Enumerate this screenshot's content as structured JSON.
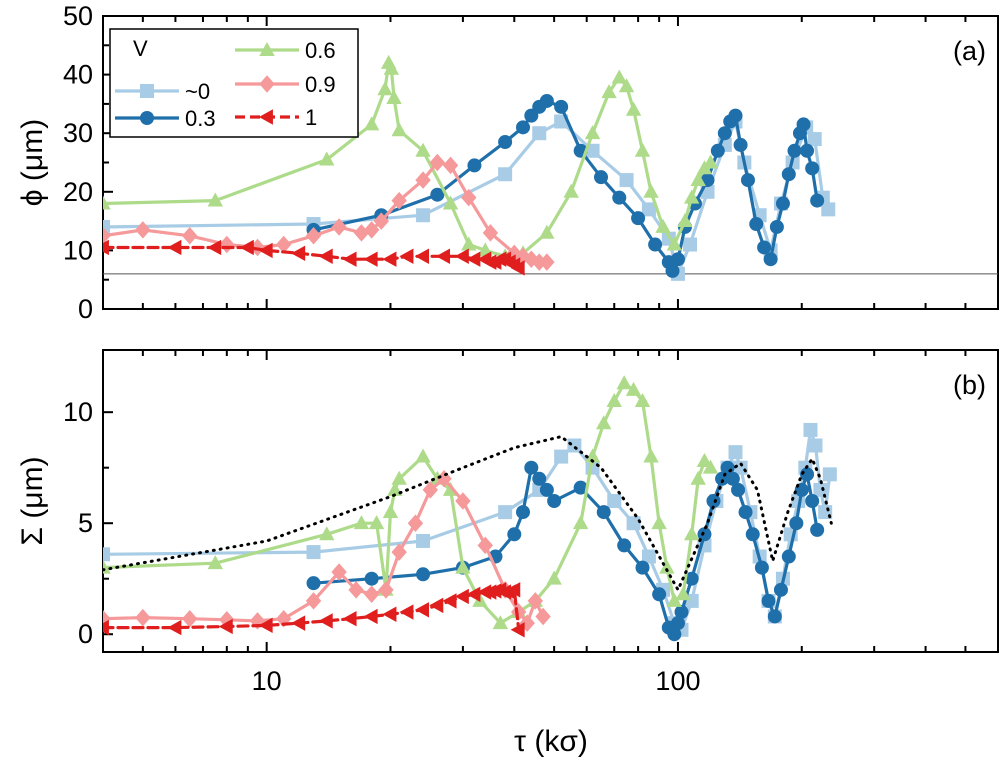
{
  "figure": {
    "xlabel": "τ (kσ)",
    "x_scale": "log",
    "x_ticks": [
      "10",
      "100"
    ],
    "legend_title": "V"
  },
  "chart_data": [
    {
      "type": "line",
      "panel": "(a)",
      "ylabel": "ϕ (μm)",
      "xlim": [
        4,
        600
      ],
      "ylim": [
        0,
        50
      ],
      "y_ticks": [
        "0",
        "10",
        "20",
        "30",
        "40",
        "50"
      ],
      "reference_line_y": 6,
      "legend_placement": "top-left",
      "series": [
        {
          "name": "~0",
          "color": "#a8cce6",
          "marker": "square",
          "dash": "solid",
          "x": [
            4,
            13,
            24,
            38,
            46,
            52,
            62,
            75,
            85,
            95,
            100,
            107,
            118,
            130,
            138,
            145,
            158,
            168,
            178,
            190,
            205,
            215,
            225,
            232
          ],
          "y": [
            14,
            14.5,
            16,
            23,
            30,
            32,
            27,
            22,
            17,
            12,
            6,
            11,
            20,
            28,
            32,
            25,
            16,
            10,
            18,
            25,
            31,
            29,
            19,
            17
          ]
        },
        {
          "name": "0.3",
          "color": "#1f6fab",
          "marker": "circle",
          "dash": "solid",
          "x": [
            13,
            19,
            26,
            32,
            38,
            42,
            44,
            46,
            48,
            52,
            58,
            65,
            72,
            80,
            88,
            95,
            97,
            100,
            104,
            110,
            118,
            125,
            130,
            134,
            138,
            142,
            148,
            155,
            162,
            168,
            174,
            180,
            186,
            192,
            198,
            202,
            206,
            212,
            218
          ],
          "y": [
            13.5,
            16,
            19.5,
            24.5,
            28.5,
            31,
            33,
            34.5,
            35.5,
            34.5,
            27,
            22.5,
            19,
            15.5,
            11,
            8,
            6.5,
            8.5,
            14,
            18,
            22,
            27,
            30,
            32,
            33,
            28,
            22,
            14.5,
            10.5,
            8.5,
            14,
            18,
            23,
            27,
            30,
            31.5,
            27,
            24,
            18.5
          ]
        },
        {
          "name": "0.6",
          "color": "#addb8a",
          "marker": "triangle-up",
          "dash": "solid",
          "x": [
            4,
            7.5,
            14,
            18,
            19.4,
            19.8,
            20.1,
            20.4,
            21,
            24,
            28,
            31,
            34,
            38,
            42,
            48,
            55,
            62,
            68,
            72,
            75,
            78,
            82,
            86,
            92,
            98,
            104,
            108,
            112,
            116,
            120
          ],
          "y": [
            18,
            18.5,
            25.5,
            31.5,
            37.5,
            42,
            41,
            36,
            30.5,
            27,
            18,
            11,
            10,
            9,
            9.5,
            13,
            20,
            30,
            37,
            39.5,
            38,
            34,
            27,
            20,
            14,
            11,
            15,
            19,
            22,
            24,
            25
          ]
        },
        {
          "name": "0.9",
          "color": "#f5999b",
          "marker": "diamond",
          "dash": "solid",
          "x": [
            4,
            5,
            6.5,
            8,
            9.5,
            11,
            13,
            15,
            17,
            18,
            19,
            21,
            24,
            26,
            28,
            31,
            35,
            40,
            42,
            44,
            46,
            48
          ],
          "y": [
            12.5,
            13.5,
            12.5,
            11,
            10.5,
            11,
            12.5,
            14,
            13,
            13.5,
            15,
            18.5,
            22,
            25,
            24.5,
            19,
            13,
            9.5,
            9,
            8.5,
            8,
            8
          ]
        },
        {
          "name": "1",
          "color": "#e01e1e",
          "marker": "triangle-left",
          "dash": "dashed",
          "x": [
            4,
            6,
            7.5,
            9,
            10,
            12,
            14,
            16,
            18,
            20,
            22,
            24,
            27,
            30,
            32,
            34,
            35,
            36,
            37,
            38,
            39,
            40,
            41
          ],
          "y": [
            10.5,
            10.5,
            10.5,
            10.5,
            10,
            9.5,
            9,
            8.5,
            8.5,
            8.5,
            9,
            9,
            9,
            9,
            8.5,
            8.5,
            8,
            8,
            8.5,
            8.5,
            8,
            7.5,
            7
          ]
        }
      ]
    },
    {
      "type": "line",
      "panel": "(b)",
      "ylabel": "Σ (μm)",
      "xlim": [
        4,
        600
      ],
      "ylim": [
        -0.8,
        12.8
      ],
      "y_ticks": [
        "0",
        "5",
        "10"
      ],
      "series": [
        {
          "name": "~0",
          "color": "#a8cce6",
          "marker": "square",
          "dash": "solid",
          "x": [
            4,
            13,
            24,
            38,
            46,
            52,
            56,
            62,
            70,
            78,
            85,
            92,
            98,
            102,
            108,
            116,
            124,
            132,
            138,
            142,
            150,
            158,
            166,
            172,
            180,
            188,
            196,
            204,
            210,
            216,
            222,
            228,
            234
          ],
          "y": [
            3.6,
            3.7,
            4.2,
            5.5,
            6.5,
            8,
            8.5,
            7.5,
            6,
            5,
            3.5,
            2,
            0.5,
            0.2,
            1.5,
            4,
            6,
            7.5,
            8.2,
            7.5,
            5.5,
            3.5,
            1.5,
            0.8,
            2.5,
            4.5,
            6,
            7.5,
            9.2,
            8.5,
            6.5,
            5.5,
            7.2
          ]
        },
        {
          "name": "0.3",
          "color": "#1f6fab",
          "marker": "circle",
          "dash": "solid",
          "x": [
            13,
            18,
            24,
            30,
            36,
            40,
            42,
            44,
            46,
            48,
            50,
            58,
            66,
            74,
            82,
            90,
            95,
            98,
            100,
            102,
            108,
            116,
            122,
            128,
            132,
            136,
            140,
            146,
            152,
            160,
            166,
            172,
            178,
            186,
            194,
            200,
            206,
            212,
            218
          ],
          "y": [
            2.3,
            2.5,
            2.7,
            3,
            3.5,
            4.5,
            5.5,
            7.5,
            7,
            6.5,
            6,
            6.6,
            5.5,
            4,
            3,
            1.8,
            0.3,
            0,
            0.5,
            1,
            2.5,
            4.5,
            6,
            7,
            7.5,
            7,
            6.5,
            5.5,
            4.5,
            3,
            1.5,
            0.8,
            2,
            3.5,
            5,
            6.5,
            7.2,
            6,
            4.7
          ]
        },
        {
          "name": "0.6",
          "color": "#addb8a",
          "marker": "triangle-up",
          "dash": "solid",
          "x": [
            4,
            7.5,
            14,
            17,
            18.5,
            19.5,
            20,
            20.5,
            21,
            24,
            26,
            28,
            30,
            33,
            37,
            41,
            45,
            50,
            58,
            62,
            66,
            70,
            74,
            78,
            82,
            86,
            90,
            94,
            98,
            103,
            108,
            112,
            116,
            120
          ],
          "y": [
            3,
            3.2,
            4.5,
            5,
            5,
            2,
            5.5,
            6.5,
            7,
            8,
            7,
            6.5,
            3,
            1.5,
            0.5,
            1,
            1.5,
            2.5,
            5,
            8,
            9.5,
            10.5,
            11.3,
            11,
            10.5,
            8,
            5,
            3,
            1.5,
            1.8,
            4.5,
            7,
            7.8,
            7.5
          ]
        },
        {
          "name": "0.9",
          "color": "#f5999b",
          "marker": "diamond",
          "dash": "solid",
          "x": [
            4,
            5,
            6.5,
            8,
            9.5,
            11,
            13,
            15,
            16.5,
            18,
            19.5,
            21,
            23,
            25,
            27,
            30,
            34,
            38,
            41,
            43,
            45,
            47
          ],
          "y": [
            0.7,
            0.75,
            0.7,
            0.65,
            0.6,
            0.7,
            1.5,
            2.8,
            2,
            1.8,
            2,
            3.7,
            5,
            6.5,
            7,
            6,
            4,
            2,
            1,
            0.5,
            1.5,
            0.8
          ]
        },
        {
          "name": "1",
          "color": "#e01e1e",
          "marker": "triangle-left",
          "dash": "dashed",
          "x": [
            4,
            6,
            8,
            10,
            12,
            14,
            16,
            18,
            20,
            22,
            24,
            26,
            28,
            30,
            32,
            34,
            35,
            36,
            37,
            38,
            39,
            40,
            41
          ],
          "y": [
            0.3,
            0.3,
            0.35,
            0.4,
            0.5,
            0.6,
            0.7,
            0.8,
            0.9,
            1,
            1.1,
            1.3,
            1.5,
            1.7,
            1.8,
            1.9,
            1.9,
            1.95,
            2,
            1.9,
            1.9,
            2,
            0.2
          ]
        },
        {
          "name": "",
          "color": "#000000",
          "marker": "none",
          "dash": "dotted",
          "x": [
            4,
            10,
            20,
            30,
            40,
            52,
            65,
            80,
            100,
            118,
            130,
            142,
            156,
            170,
            185,
            200,
            212,
            222,
            236
          ],
          "y": [
            2.9,
            4.2,
            6.2,
            7.5,
            8.4,
            8.9,
            7.5,
            5.2,
            2.0,
            5.0,
            7.2,
            7.7,
            6.5,
            3.3,
            5.5,
            7.2,
            7.9,
            7.0,
            5.0
          ]
        }
      ]
    }
  ]
}
